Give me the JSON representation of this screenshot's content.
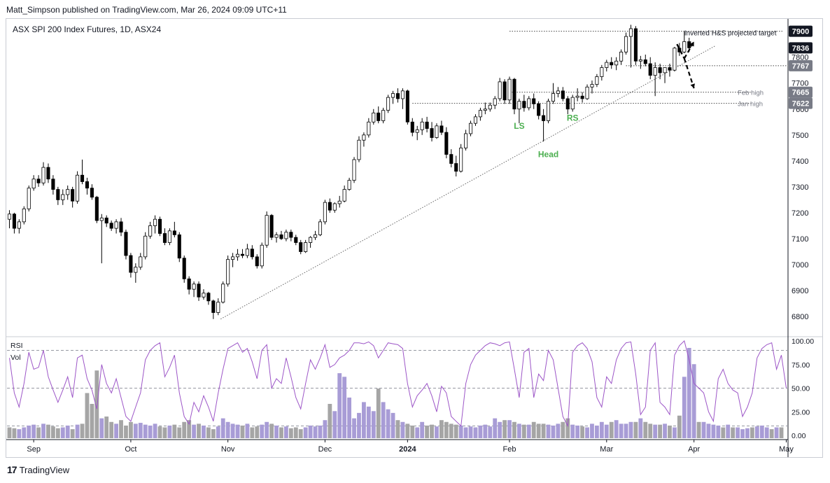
{
  "publisher_line": "Matt_Simpson published on TradingView.com, Mar 26, 2024 09:09 UTC+11",
  "footer": {
    "logo_text": "TradingView",
    "logo_icon": "tradingview-logo-icon"
  },
  "colors": {
    "up": "#ffffff",
    "down": "#000000",
    "wick": "#000000",
    "rsi": "#9c55c7",
    "vol_up": "#a89cd6",
    "vol_down": "#a5a5a5",
    "guide": "#888888",
    "pattern_label": "#4caf50",
    "badge_dark": "#131722",
    "badge_grey": "#787b86"
  },
  "chart_data": {
    "type": "candlestick",
    "title": "ASX SPI 200 Index Futures, 1D, ASX24",
    "y_axis": {
      "range": [
        6730,
        7945
      ],
      "ticks": [
        6800,
        6900,
        7000,
        7100,
        7200,
        7300,
        7400,
        7500,
        7600,
        7700,
        7800
      ]
    },
    "x_axis": {
      "labels": [
        "Sep",
        "Oct",
        "Nov",
        "Dec",
        "2024",
        "Feb",
        "Mar",
        "Apr",
        "May"
      ],
      "label_bars": [
        5,
        25,
        45,
        65,
        82,
        103,
        123,
        141,
        160
      ],
      "total_bars": 160
    },
    "price_badges": [
      {
        "value": 7900,
        "text": "7900",
        "style": "dark"
      },
      {
        "value": 7836,
        "text": "7836",
        "style": "dark"
      },
      {
        "value": 7767,
        "text": "7767",
        "style": "grey"
      },
      {
        "value": 7665,
        "text": "7665",
        "style": "grey"
      },
      {
        "value": 7622,
        "text": "7622",
        "style": "grey"
      }
    ],
    "level_lines": [
      {
        "name": "Inverted H&S projected target",
        "value": 7900,
        "start_bar": 103
      },
      {
        "name": "Feb high",
        "value": 7665,
        "start_bar": 103
      },
      {
        "name": "Jan high",
        "value": 7622,
        "start_bar": 83
      },
      {
        "name": "",
        "value": 7767,
        "start_bar": 127
      }
    ],
    "annotations": [
      {
        "text": "Inverted H&S projected target",
        "bar": 139,
        "value": 7895
      },
      {
        "text": "Feb high",
        "bar": 150,
        "value": 7665
      },
      {
        "text": "Jan high",
        "bar": 150,
        "value": 7622
      },
      {
        "text": "LS",
        "bar": 105,
        "value": 7535
      },
      {
        "text": "Head",
        "bar": 111,
        "value": 7425
      },
      {
        "text": "RS",
        "bar": 116,
        "value": 7565
      }
    ],
    "trendline": {
      "from": {
        "bar": 43.5,
        "value": 6790
      },
      "to": {
        "bar": 145.5,
        "value": 7845
      }
    },
    "projection_arrows": [
      {
        "from": {
          "bar": 139,
          "value": 7795
        },
        "to": {
          "bar": 141,
          "value": 7860
        }
      },
      {
        "from": {
          "bar": 139,
          "value": 7795
        },
        "to": {
          "bar": 141,
          "value": 7680
        }
      }
    ],
    "candles": [
      [
        7175,
        7210,
        7140,
        7195
      ],
      [
        7195,
        7200,
        7120,
        7140
      ],
      [
        7140,
        7175,
        7120,
        7165
      ],
      [
        7165,
        7225,
        7155,
        7215
      ],
      [
        7215,
        7305,
        7205,
        7295
      ],
      [
        7295,
        7345,
        7285,
        7330
      ],
      [
        7330,
        7345,
        7300,
        7315
      ],
      [
        7315,
        7395,
        7305,
        7375
      ],
      [
        7375,
        7390,
        7315,
        7330
      ],
      [
        7330,
        7345,
        7270,
        7290
      ],
      [
        7290,
        7300,
        7230,
        7250
      ],
      [
        7250,
        7290,
        7230,
        7270
      ],
      [
        7270,
        7305,
        7250,
        7290
      ],
      [
        7290,
        7300,
        7220,
        7245
      ],
      [
        7245,
        7360,
        7235,
        7345
      ],
      [
        7345,
        7405,
        7310,
        7320
      ],
      [
        7320,
        7335,
        7270,
        7295
      ],
      [
        7295,
        7310,
        7250,
        7260
      ],
      [
        7260,
        7265,
        7160,
        7170
      ],
      [
        7170,
        7195,
        7005,
        7180
      ],
      [
        7180,
        7190,
        7145,
        7160
      ],
      [
        7160,
        7170,
        7130,
        7140
      ],
      [
        7140,
        7175,
        7120,
        7165
      ],
      [
        7165,
        7180,
        7110,
        7125
      ],
      [
        7125,
        7135,
        7020,
        7035
      ],
      [
        7035,
        7045,
        6950,
        6970
      ],
      [
        6970,
        7005,
        6930,
        6990
      ],
      [
        6990,
        7045,
        6980,
        7030
      ],
      [
        7030,
        7125,
        7020,
        7110
      ],
      [
        7110,
        7165,
        7100,
        7150
      ],
      [
        7150,
        7190,
        7120,
        7175
      ],
      [
        7175,
        7185,
        7110,
        7120
      ],
      [
        7120,
        7140,
        7075,
        7085
      ],
      [
        7085,
        7140,
        7075,
        7130
      ],
      [
        7130,
        7165,
        7105,
        7115
      ],
      [
        7115,
        7125,
        7010,
        7025
      ],
      [
        7025,
        7035,
        6930,
        6945
      ],
      [
        6945,
        6955,
        6885,
        6905
      ],
      [
        6905,
        6935,
        6875,
        6925
      ],
      [
        6925,
        6935,
        6860,
        6875
      ],
      [
        6875,
        6905,
        6865,
        6890
      ],
      [
        6890,
        6895,
        6845,
        6860
      ],
      [
        6860,
        6865,
        6790,
        6815
      ],
      [
        6815,
        6870,
        6805,
        6855
      ],
      [
        6855,
        6935,
        6850,
        6925
      ],
      [
        6925,
        7035,
        6915,
        7020
      ],
      [
        7020,
        7045,
        6990,
        7030
      ],
      [
        7030,
        7060,
        7015,
        7040
      ],
      [
        7040,
        7060,
        7025,
        7035
      ],
      [
        7035,
        7080,
        7025,
        7060
      ],
      [
        7060,
        7075,
        7020,
        7030
      ],
      [
        7030,
        7040,
        6985,
        6995
      ],
      [
        6995,
        7085,
        6985,
        7075
      ],
      [
        7075,
        7205,
        7065,
        7190
      ],
      [
        7190,
        7195,
        7095,
        7105
      ],
      [
        7105,
        7125,
        7085,
        7115
      ],
      [
        7115,
        7130,
        7095,
        7100
      ],
      [
        7100,
        7135,
        7090,
        7125
      ],
      [
        7125,
        7135,
        7090,
        7105
      ],
      [
        7105,
        7115,
        7075,
        7085
      ],
      [
        7085,
        7095,
        7040,
        7050
      ],
      [
        7050,
        7095,
        7045,
        7085
      ],
      [
        7085,
        7110,
        7065,
        7105
      ],
      [
        7105,
        7130,
        7095,
        7115
      ],
      [
        7115,
        7175,
        7110,
        7165
      ],
      [
        7165,
        7250,
        7155,
        7240
      ],
      [
        7240,
        7255,
        7200,
        7210
      ],
      [
        7210,
        7240,
        7200,
        7235
      ],
      [
        7235,
        7265,
        7220,
        7245
      ],
      [
        7245,
        7305,
        7240,
        7290
      ],
      [
        7290,
        7335,
        7285,
        7325
      ],
      [
        7325,
        7415,
        7315,
        7405
      ],
      [
        7405,
        7495,
        7395,
        7480
      ],
      [
        7480,
        7510,
        7455,
        7500
      ],
      [
        7500,
        7565,
        7490,
        7550
      ],
      [
        7550,
        7600,
        7540,
        7585
      ],
      [
        7585,
        7610,
        7545,
        7555
      ],
      [
        7555,
        7605,
        7545,
        7595
      ],
      [
        7595,
        7655,
        7585,
        7645
      ],
      [
        7645,
        7670,
        7620,
        7660
      ],
      [
        7660,
        7680,
        7625,
        7640
      ],
      [
        7640,
        7680,
        7600,
        7670
      ],
      [
        7670,
        7675,
        7540,
        7550
      ],
      [
        7550,
        7565,
        7495,
        7510
      ],
      [
        7510,
        7535,
        7480,
        7520
      ],
      [
        7520,
        7565,
        7500,
        7550
      ],
      [
        7550,
        7570,
        7510,
        7525
      ],
      [
        7525,
        7550,
        7475,
        7490
      ],
      [
        7490,
        7545,
        7485,
        7535
      ],
      [
        7535,
        7555,
        7500,
        7510
      ],
      [
        7510,
        7530,
        7410,
        7425
      ],
      [
        7425,
        7445,
        7375,
        7390
      ],
      [
        7390,
        7420,
        7340,
        7360
      ],
      [
        7360,
        7465,
        7355,
        7450
      ],
      [
        7450,
        7520,
        7440,
        7505
      ],
      [
        7505,
        7555,
        7495,
        7545
      ],
      [
        7545,
        7580,
        7535,
        7570
      ],
      [
        7570,
        7605,
        7555,
        7595
      ],
      [
        7595,
        7625,
        7580,
        7600
      ],
      [
        7600,
        7625,
        7590,
        7615
      ],
      [
        7615,
        7650,
        7600,
        7640
      ],
      [
        7640,
        7720,
        7630,
        7705
      ],
      [
        7705,
        7715,
        7620,
        7635
      ],
      [
        7635,
        7725,
        7620,
        7715
      ],
      [
        7715,
        7720,
        7580,
        7600
      ],
      [
        7600,
        7640,
        7545,
        7630
      ],
      [
        7630,
        7655,
        7590,
        7605
      ],
      [
        7605,
        7650,
        7595,
        7640
      ],
      [
        7640,
        7660,
        7600,
        7620
      ],
      [
        7620,
        7630,
        7560,
        7575
      ],
      [
        7575,
        7600,
        7475,
        7555
      ],
      [
        7555,
        7640,
        7545,
        7630
      ],
      [
        7630,
        7700,
        7620,
        7660
      ],
      [
        7660,
        7685,
        7645,
        7670
      ],
      [
        7670,
        7685,
        7630,
        7640
      ],
      [
        7640,
        7650,
        7580,
        7600
      ],
      [
        7600,
        7655,
        7590,
        7645
      ],
      [
        7645,
        7680,
        7630,
        7650
      ],
      [
        7650,
        7665,
        7625,
        7640
      ],
      [
        7640,
        7695,
        7635,
        7685
      ],
      [
        7685,
        7710,
        7660,
        7695
      ],
      [
        7695,
        7735,
        7685,
        7725
      ],
      [
        7725,
        7770,
        7710,
        7760
      ],
      [
        7760,
        7790,
        7745,
        7780
      ],
      [
        7780,
        7800,
        7755,
        7770
      ],
      [
        7770,
        7800,
        7750,
        7785
      ],
      [
        7785,
        7830,
        7770,
        7820
      ],
      [
        7820,
        7895,
        7810,
        7880
      ],
      [
        7880,
        7925,
        7760,
        7910
      ],
      [
        7910,
        7920,
        7770,
        7785
      ],
      [
        7785,
        7805,
        7755,
        7790
      ],
      [
        7790,
        7810,
        7765,
        7775
      ],
      [
        7775,
        7800,
        7715,
        7730
      ],
      [
        7730,
        7780,
        7650,
        7760
      ],
      [
        7760,
        7775,
        7715,
        7740
      ],
      [
        7740,
        7755,
        7700,
        7760
      ],
      [
        7760,
        7775,
        7725,
        7750
      ],
      [
        7750,
        7840,
        7745,
        7835
      ],
      [
        7835,
        7855,
        7805,
        7820
      ],
      [
        7820,
        7900,
        7815,
        7860
      ],
      [
        7860,
        7875,
        7820,
        7836
      ]
    ],
    "rsi": {
      "label": "RSI",
      "ticks": [
        0,
        25,
        50,
        75,
        100
      ],
      "tick_labels": [
        "0.00",
        "25.00",
        "50.00",
        "75.00",
        "100.00"
      ],
      "guide_levels": [
        90,
        50,
        10
      ],
      "values": [
        82,
        45,
        30,
        55,
        88,
        70,
        72,
        90,
        62,
        48,
        35,
        48,
        62,
        40,
        82,
        85,
        60,
        48,
        28,
        75,
        55,
        45,
        60,
        40,
        20,
        15,
        30,
        45,
        80,
        90,
        95,
        98,
        62,
        72,
        85,
        45,
        20,
        12,
        35,
        25,
        42,
        30,
        15,
        45,
        70,
        92,
        95,
        98,
        88,
        92,
        78,
        60,
        90,
        96,
        50,
        60,
        55,
        82,
        62,
        40,
        28,
        55,
        80,
        70,
        82,
        96,
        72,
        75,
        82,
        85,
        90,
        98,
        98,
        97,
        99,
        95,
        82,
        90,
        98,
        97,
        96,
        92,
        55,
        30,
        42,
        48,
        55,
        42,
        25,
        52,
        45,
        20,
        15,
        10,
        55,
        75,
        85,
        90,
        95,
        98,
        97,
        95,
        98,
        99,
        70,
        40,
        88,
        92,
        40,
        65,
        58,
        90,
        80,
        50,
        20,
        10,
        88,
        95,
        98,
        92,
        78,
        40,
        30,
        62,
        55,
        80,
        92,
        98,
        99,
        65,
        22,
        30,
        90,
        98,
        35,
        30,
        22,
        85,
        95,
        100,
        80,
        55,
        50,
        45,
        25,
        15,
        60,
        70,
        55,
        48,
        45,
        20,
        30,
        45,
        82,
        92,
        96,
        98,
        70,
        85,
        50
      ]
    },
    "volume": {
      "label": "Vol",
      "up": [
        false,
        false,
        true,
        true,
        true,
        true,
        false,
        true,
        false,
        false,
        false,
        true,
        true,
        false,
        true,
        false,
        false,
        false,
        false,
        true,
        false,
        false,
        true,
        false,
        false,
        false,
        true,
        true,
        true,
        true,
        true,
        false,
        false,
        true,
        false,
        false,
        false,
        false,
        true,
        false,
        true,
        false,
        false,
        true,
        true,
        true,
        true,
        true,
        false,
        true,
        false,
        false,
        true,
        true,
        false,
        true,
        false,
        true,
        false,
        false,
        false,
        true,
        true,
        true,
        true,
        true,
        false,
        true,
        true,
        true,
        true,
        true,
        true,
        true,
        true,
        true,
        false,
        true,
        true,
        true,
        false,
        true,
        false,
        false,
        true,
        true,
        false,
        false,
        true,
        false,
        false,
        false,
        false,
        true,
        true,
        true,
        true,
        true,
        true,
        true,
        true,
        true,
        false,
        true,
        false,
        true,
        false,
        true,
        false,
        false,
        false,
        true,
        true,
        true,
        false,
        false,
        true,
        true,
        false,
        true,
        true,
        true,
        true,
        true,
        false,
        true,
        true,
        true,
        true,
        false,
        true,
        false,
        false,
        true,
        false,
        true,
        false,
        true,
        false,
        true,
        true,
        true,
        false,
        true,
        true,
        true,
        true,
        false,
        true,
        false,
        true,
        true,
        true,
        false,
        true,
        true,
        true,
        false,
        true,
        false
      ],
      "values": [
        12,
        11,
        10,
        12,
        14,
        15,
        12,
        16,
        15,
        13,
        11,
        12,
        14,
        10,
        15,
        16,
        50,
        38,
        75,
        22,
        24,
        18,
        16,
        20,
        14,
        18,
        16,
        17,
        15,
        14,
        16,
        13,
        12,
        14,
        15,
        12,
        18,
        20,
        15,
        16,
        14,
        12,
        10,
        13,
        22,
        18,
        16,
        15,
        14,
        16,
        12,
        13,
        15,
        18,
        16,
        14,
        12,
        13,
        11,
        12,
        10,
        12,
        14,
        13,
        14,
        20,
        38,
        30,
        72,
        68,
        45,
        22,
        28,
        40,
        35,
        30,
        55,
        40,
        32,
        28,
        20,
        18,
        16,
        14,
        12,
        18,
        14,
        15,
        13,
        20,
        18,
        16,
        15,
        14,
        12,
        13,
        12,
        14,
        15,
        13,
        22,
        18,
        20,
        20,
        18,
        16,
        15,
        15,
        18,
        16,
        16,
        15,
        14,
        16,
        18,
        22,
        15,
        14,
        13,
        12,
        16,
        14,
        18,
        15,
        18,
        20,
        16,
        16,
        18,
        18,
        22,
        18,
        16,
        15,
        15,
        16,
        14,
        12,
        25,
        68,
        100,
        82,
        18,
        18,
        16,
        15,
        14,
        12,
        15,
        12,
        12,
        10,
        11,
        12,
        13,
        14,
        12,
        10,
        12,
        12
      ]
    }
  }
}
